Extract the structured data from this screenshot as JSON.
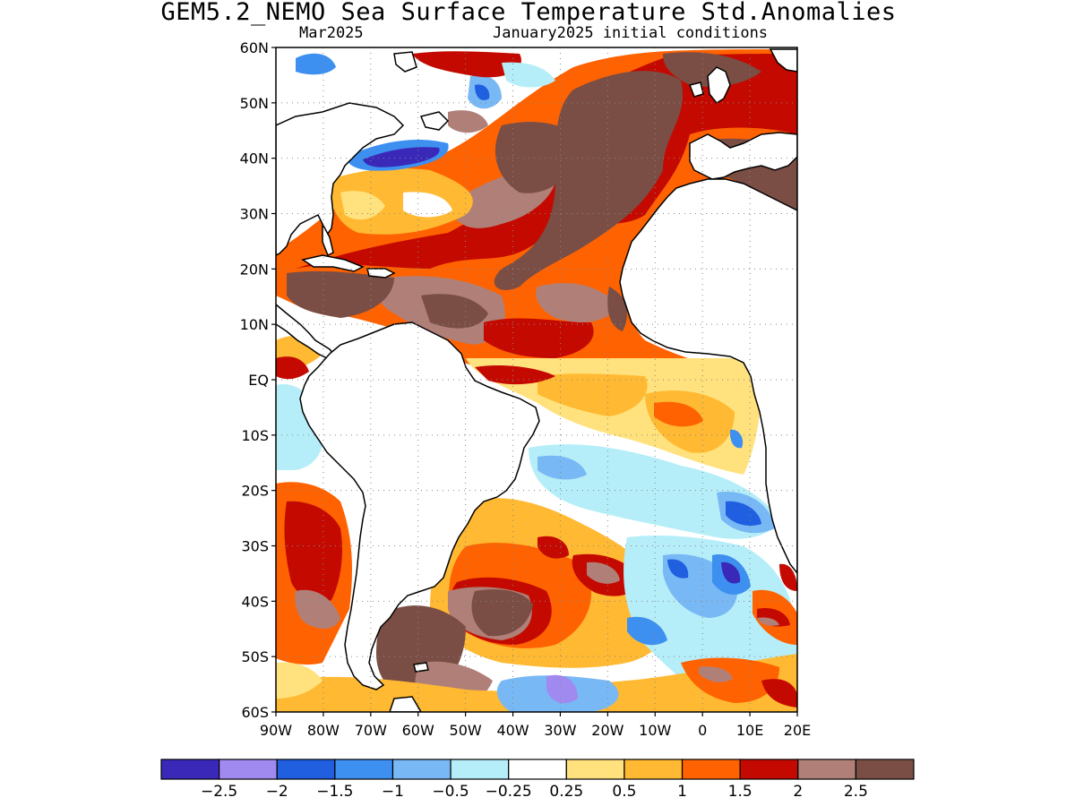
{
  "title": "GEM5.2_NEMO Sea Surface Temperature Std.Anomalies",
  "subtitle_left": "Mar2025",
  "subtitle_right": "January2025 initial conditions",
  "map": {
    "region": "Atlantic Ocean",
    "lon_range": [
      -90,
      20
    ],
    "lat_range": [
      -60,
      60
    ],
    "lat_ticks": [
      "60N",
      "50N",
      "40N",
      "30N",
      "20N",
      "10N",
      "EQ",
      "10S",
      "20S",
      "30S",
      "40S",
      "50S",
      "60S"
    ],
    "lon_ticks": [
      "90W",
      "80W",
      "70W",
      "60W",
      "50W",
      "40W",
      "30W",
      "20W",
      "10W",
      "0",
      "10E",
      "20E"
    ],
    "grid": "dotted"
  },
  "colorbar": {
    "colors": [
      "#3a29b8",
      "#a08af0",
      "#1f5fe0",
      "#3d90f0",
      "#78b8f5",
      "#b5eef8",
      "#ffffff",
      "#ffe27d",
      "#ffb932",
      "#ff6200",
      "#c40a00",
      "#b08078",
      "#7a4e45"
    ],
    "labels": [
      "−2.5",
      "−2",
      "−1.5",
      "−1",
      "−0.5",
      "−0.25",
      "0.25",
      "0.5",
      "1",
      "1.5",
      "2",
      "2.5"
    ]
  }
}
